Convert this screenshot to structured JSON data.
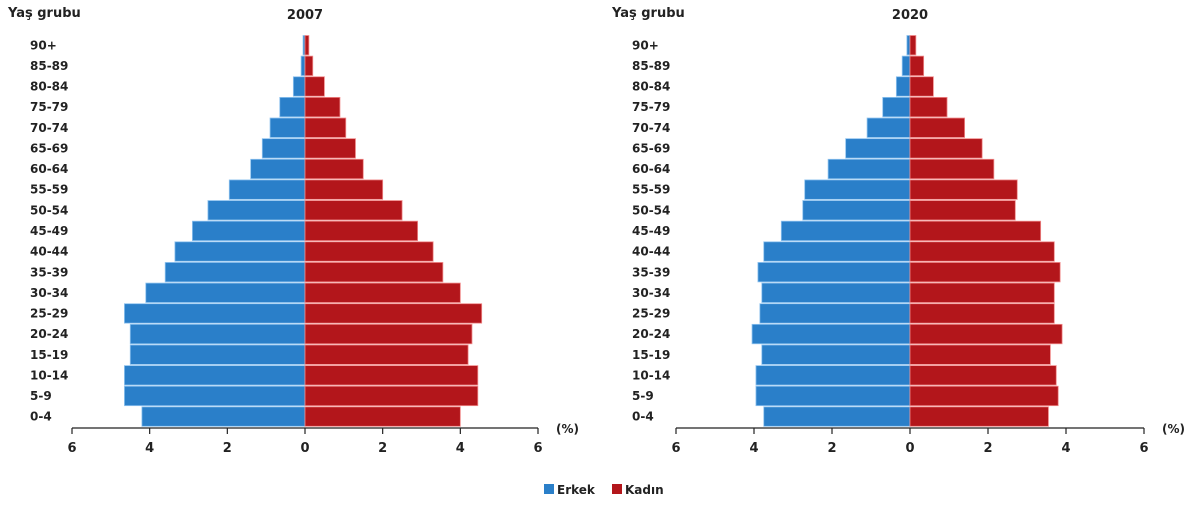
{
  "legend": {
    "male": "Erkek",
    "female": "Kadın"
  },
  "colors": {
    "male": "#2a7fc9",
    "female": "#b3161b"
  },
  "chart_data": [
    {
      "type": "bar",
      "orientation": "horizontal-pyramid",
      "title": "2007",
      "ylabel": "Yaş grubu",
      "xlabel": "(%)",
      "xlim": [
        -6,
        6
      ],
      "xticks": [
        "6",
        "4",
        "2",
        "0",
        "2",
        "4",
        "6"
      ],
      "categories": [
        "90+",
        "85-89",
        "80-84",
        "75-79",
        "70-74",
        "65-69",
        "60-64",
        "55-59",
        "50-54",
        "45-49",
        "40-44",
        "35-39",
        "30-34",
        "25-29",
        "20-24",
        "15-19",
        "10-14",
        "5-9",
        "0-4"
      ],
      "series": [
        {
          "name": "Erkek",
          "values": [
            0.05,
            0.1,
            0.3,
            0.65,
            0.9,
            1.1,
            1.4,
            1.95,
            2.5,
            2.9,
            3.35,
            3.6,
            4.1,
            4.65,
            4.5,
            4.5,
            4.65,
            4.65,
            4.2
          ]
        },
        {
          "name": "Kadın",
          "values": [
            0.1,
            0.2,
            0.5,
            0.9,
            1.05,
            1.3,
            1.5,
            2.0,
            2.5,
            2.9,
            3.3,
            3.55,
            4.0,
            4.55,
            4.3,
            4.2,
            4.45,
            4.45,
            4.0
          ]
        }
      ]
    },
    {
      "type": "bar",
      "orientation": "horizontal-pyramid",
      "title": "2020",
      "ylabel": "Yaş grubu",
      "xlabel": "(%)",
      "xlim": [
        -6,
        6
      ],
      "xticks": [
        "6",
        "4",
        "2",
        "0",
        "2",
        "4",
        "6"
      ],
      "categories": [
        "90+",
        "85-89",
        "80-84",
        "75-79",
        "70-74",
        "65-69",
        "60-64",
        "55-59",
        "50-54",
        "45-49",
        "40-44",
        "35-39",
        "30-34",
        "25-29",
        "20-24",
        "15-19",
        "10-14",
        "5-9",
        "0-4"
      ],
      "series": [
        {
          "name": "Erkek",
          "values": [
            0.08,
            0.2,
            0.35,
            0.7,
            1.1,
            1.65,
            2.1,
            2.7,
            2.75,
            3.3,
            3.75,
            3.9,
            3.8,
            3.85,
            4.05,
            3.8,
            3.95,
            3.95,
            3.75
          ]
        },
        {
          "name": "Kadın",
          "values": [
            0.15,
            0.35,
            0.6,
            0.95,
            1.4,
            1.85,
            2.15,
            2.75,
            2.7,
            3.35,
            3.7,
            3.85,
            3.7,
            3.7,
            3.9,
            3.6,
            3.75,
            3.8,
            3.55
          ]
        }
      ]
    }
  ]
}
